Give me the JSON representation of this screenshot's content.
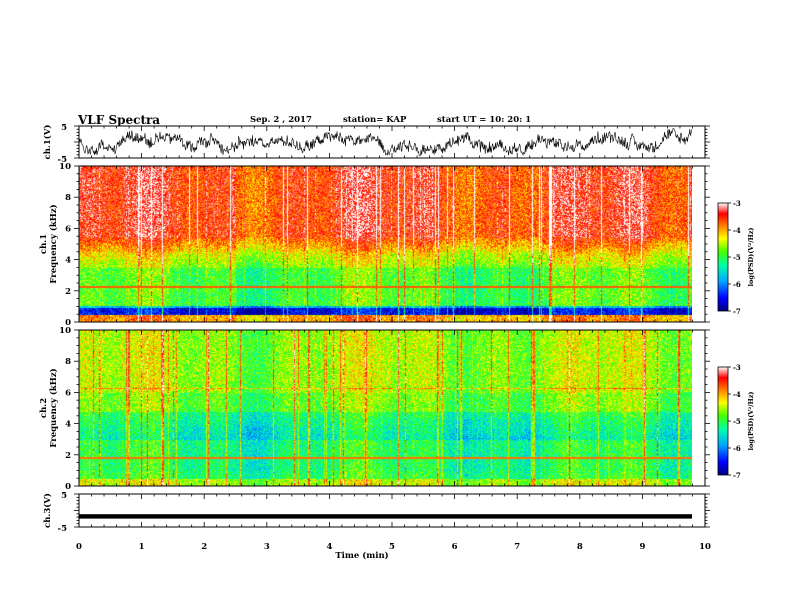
{
  "header": {
    "title": "VLF Spectra",
    "date": "Sep. 2 , 2017",
    "station": "station= KAP",
    "start": "start  UT  =   10: 20: 1"
  },
  "chart_data": [
    {
      "type": "line",
      "panel": "ch1-waveform",
      "ylabel": "ch.1(V)",
      "ylim": [
        -5,
        5
      ],
      "yticks": [
        "5",
        "-5"
      ],
      "xlim": [
        0,
        10
      ],
      "description_of_series": "dense black waveform, roughly -3 to 3 V",
      "series_range": [
        -3,
        3
      ]
    },
    {
      "type": "heatmap",
      "panel": "ch1-spectrogram",
      "ylabel": "ch.1\nFrequency (kHz)",
      "ylabel_lines": [
        "ch.1",
        "Frequency (kHz)"
      ],
      "ylim": [
        0,
        10
      ],
      "yticks": [
        "0",
        "2",
        "4",
        "6",
        "8",
        "10"
      ],
      "xlim": [
        0,
        10
      ],
      "colorbar": {
        "label": "log(PSD)(V²/Hz)",
        "ticks": [
          "-3",
          "-4",
          "-5",
          "-6",
          "-7"
        ],
        "range": [
          -7,
          -3
        ]
      }
    },
    {
      "type": "heatmap",
      "panel": "ch2-spectrogram",
      "ylabel": "ch.2\nFrequency (kHz)",
      "ylabel_lines": [
        "ch.2",
        "Frequency (kHz)"
      ],
      "ylim": [
        0,
        10
      ],
      "yticks": [
        "0",
        "2",
        "4",
        "6",
        "8",
        "10"
      ],
      "xlim": [
        0,
        10
      ],
      "colorbar": {
        "label": "log(PSD)(V²/Hz)",
        "ticks": [
          "-3",
          "-4",
          "-5",
          "-6",
          "-7"
        ],
        "range": [
          -7,
          -3
        ]
      }
    },
    {
      "type": "line",
      "panel": "ch3-waveform",
      "ylabel": "ch.3(V)",
      "ylim": [
        -5,
        5
      ],
      "yticks": [
        "5",
        "-5"
      ],
      "xlim": [
        0,
        10
      ],
      "series_value": -1.8
    }
  ],
  "xaxis": {
    "label": "Time (min)",
    "ticks": [
      "0",
      "1",
      "2",
      "3",
      "4",
      "5",
      "6",
      "7",
      "8",
      "9",
      "10"
    ],
    "range": [
      0,
      10
    ]
  },
  "colors": {
    "colormap": [
      "#000080",
      "#0000ff",
      "#00aaff",
      "#00ffaa",
      "#44ff00",
      "#ffff00",
      "#ff8800",
      "#ff0000",
      "#ffffff"
    ]
  }
}
